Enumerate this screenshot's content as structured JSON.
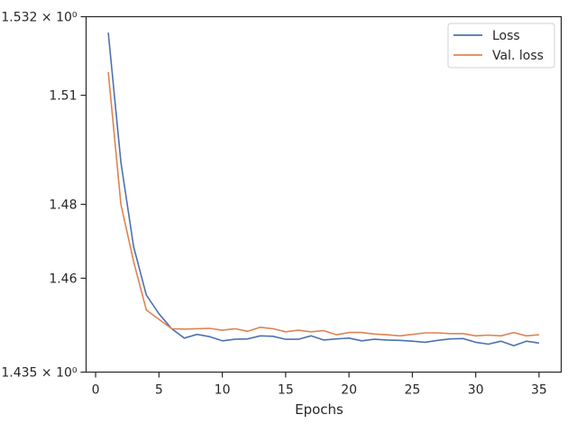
{
  "chart_data": {
    "type": "line",
    "title": "",
    "xlabel": "Epochs",
    "ylabel": "",
    "yscale": "log",
    "xlim": [
      -0.75,
      36.75
    ],
    "ylim": [
      1.435,
      1.532
    ],
    "xticks": [
      0,
      5,
      10,
      15,
      20,
      25,
      30,
      35
    ],
    "xtick_labels": [
      "0",
      "5",
      "10",
      "15",
      "20",
      "25",
      "30",
      "35"
    ],
    "yticks": [
      1.435,
      1.46,
      1.48,
      1.51,
      1.532
    ],
    "ytick_labels": [
      "1.435 × 10⁰",
      "1.46",
      "1.48",
      "1.51",
      "1.532 × 10⁰"
    ],
    "grid": false,
    "legend_position": "top-right",
    "x": [
      1,
      2,
      3,
      4,
      5,
      6,
      7,
      8,
      9,
      10,
      11,
      12,
      13,
      14,
      15,
      16,
      17,
      18,
      19,
      20,
      21,
      22,
      23,
      24,
      25,
      26,
      27,
      28,
      29,
      30,
      31,
      32,
      33,
      34,
      35
    ],
    "series": [
      {
        "name": "Loss",
        "color": "#4c72b0",
        "values": [
          1.5275,
          1.4915,
          1.4685,
          1.4555,
          1.4505,
          1.4465,
          1.444,
          1.445,
          1.4444,
          1.4433,
          1.4437,
          1.4438,
          1.4446,
          1.4445,
          1.4437,
          1.4437,
          1.4446,
          1.4435,
          1.4438,
          1.444,
          1.4433,
          1.4437,
          1.4435,
          1.4434,
          1.4432,
          1.4429,
          1.4434,
          1.4438,
          1.4439,
          1.4429,
          1.4424,
          1.4432,
          1.442,
          1.4432,
          1.4427
        ]
      },
      {
        "name": "Val. loss",
        "color": "#dd8452",
        "values": [
          1.5165,
          1.48,
          1.4645,
          1.4515,
          1.449,
          1.4465,
          1.4464,
          1.4465,
          1.4466,
          1.4461,
          1.4465,
          1.4458,
          1.4469,
          1.4465,
          1.4457,
          1.4461,
          1.4457,
          1.446,
          1.4449,
          1.4455,
          1.4455,
          1.4451,
          1.4449,
          1.4446,
          1.445,
          1.4454,
          1.4454,
          1.4452,
          1.4452,
          1.4446,
          1.4448,
          1.4446,
          1.4455,
          1.4446,
          1.4449
        ]
      }
    ]
  }
}
